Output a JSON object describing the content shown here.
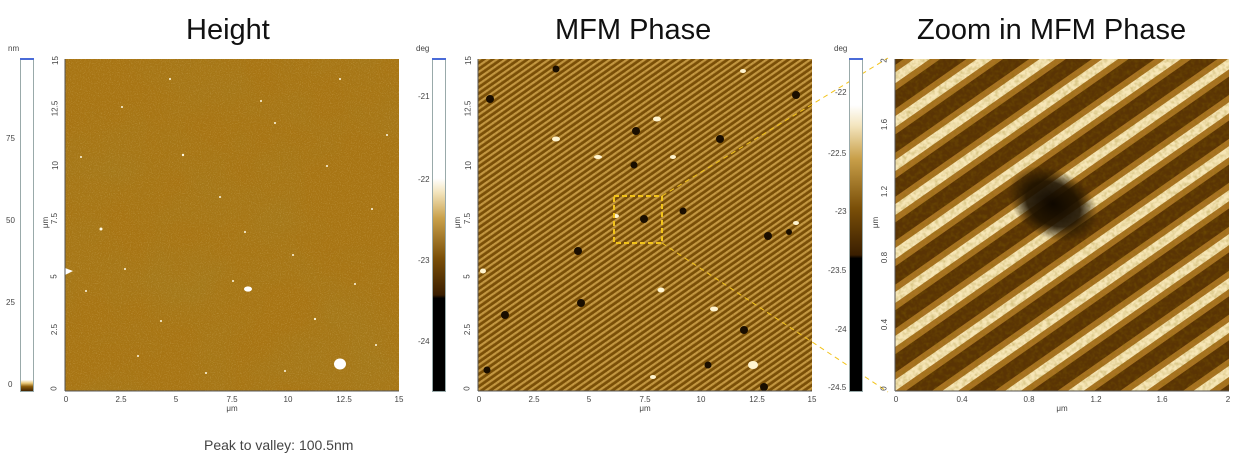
{
  "panels": {
    "height": {
      "title": "Height",
      "x_axis_label": "μm",
      "y_axis_label": "μm",
      "x_ticks": [
        "0",
        "2.5",
        "5",
        "7.5",
        "10",
        "12.5",
        "15"
      ],
      "y_ticks": [
        "0",
        "2.5",
        "5",
        "7.5",
        "10",
        "12.5",
        "15"
      ],
      "colorbar_unit": "nm",
      "colorbar_ticks": [
        "0",
        "25",
        "50",
        "75"
      ]
    },
    "mfm": {
      "title": "MFM Phase",
      "x_axis_label": "μm",
      "y_axis_label": "μm",
      "x_ticks": [
        "0",
        "2.5",
        "5",
        "7.5",
        "10",
        "12.5",
        "15"
      ],
      "y_ticks": [
        "0",
        "2.5",
        "5",
        "7.5",
        "10",
        "12.5",
        "15"
      ],
      "colorbar_unit": "deg",
      "colorbar_ticks": [
        "-21",
        "-22",
        "-23",
        "-24"
      ]
    },
    "zoom": {
      "title": "Zoom in MFM Phase",
      "x_axis_label": "μm",
      "y_axis_label": "μm",
      "x_ticks": [
        "0",
        "0.4",
        "0.8",
        "1.2",
        "1.6",
        "2"
      ],
      "y_ticks": [
        "0",
        "0.4",
        "0.8",
        "1.2",
        "1.6",
        "2"
      ],
      "colorbar_unit": "deg",
      "colorbar_ticks": [
        "-22",
        "-22.5",
        "-23",
        "-23.5",
        "-24",
        "-24.5"
      ]
    }
  },
  "footer": {
    "peak_to_valley": "Peak to valley: 100.5nm"
  },
  "colors": {
    "afm_gold": "#a87514",
    "afm_dark": "#3a2402",
    "afm_light": "#f4e0a0",
    "colorbar_frame": "#4a6bd8",
    "zoom_callout": "#f2c31a"
  }
}
